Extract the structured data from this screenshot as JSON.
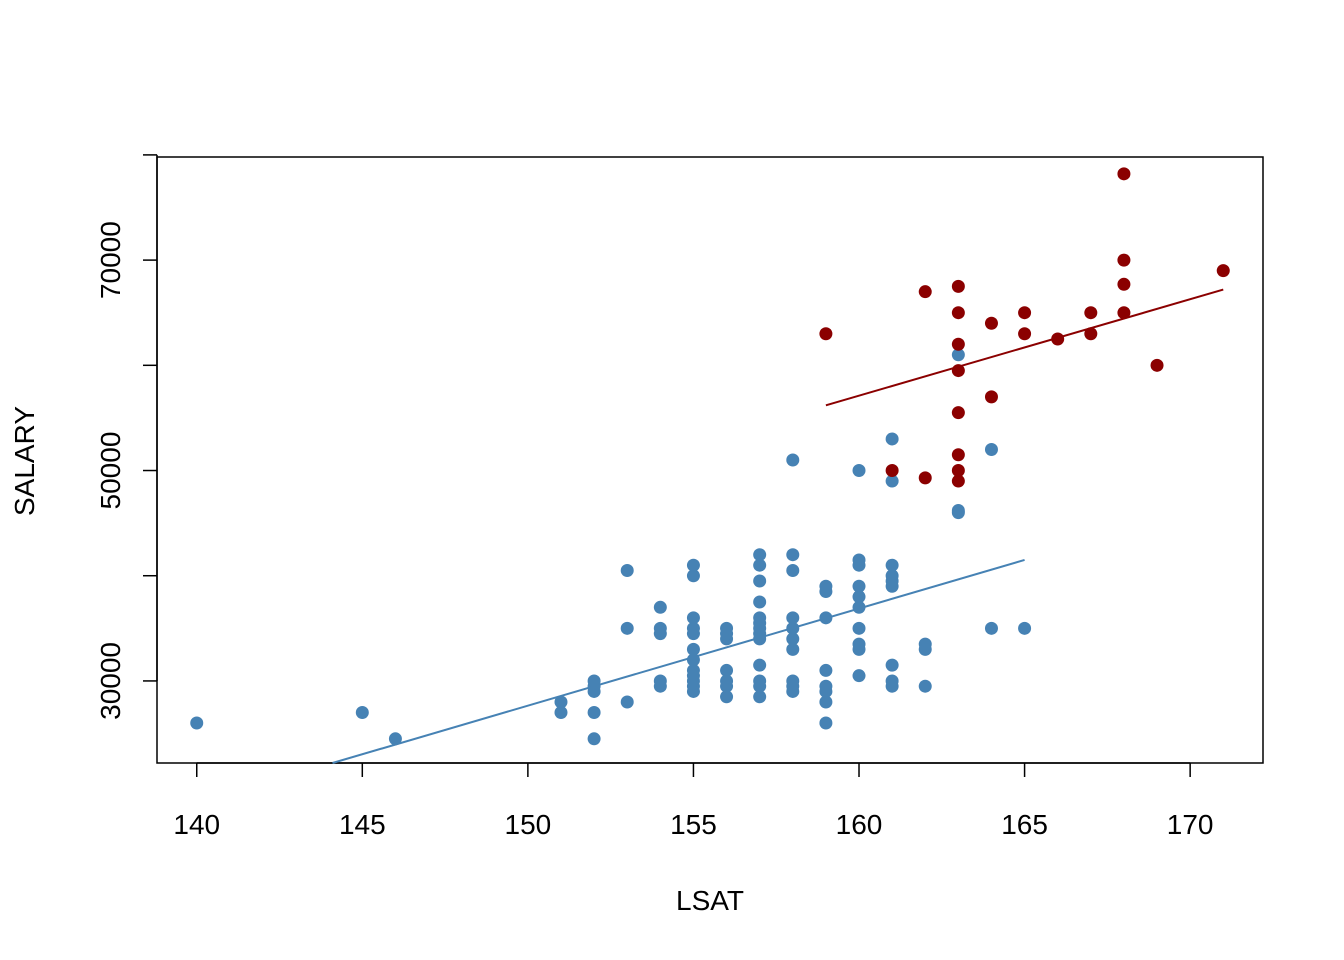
{
  "chart_data": {
    "type": "scatter",
    "title": "",
    "xlabel": "LSAT",
    "ylabel": "SALARY",
    "xlim": [
      138.8,
      172.2
    ],
    "ylim": [
      22200,
      79800
    ],
    "xticks": [
      140,
      145,
      150,
      155,
      160,
      165,
      170
    ],
    "yticks": [
      30000,
      50000,
      70000
    ],
    "ytick_labels_shown": [
      "30000",
      "50000",
      "70000"
    ],
    "ytick_marks": [
      30000,
      40000,
      50000,
      60000,
      70000,
      80000
    ],
    "grid": false,
    "legend": "none",
    "series": [
      {
        "color": "#4682B4",
        "points": [
          [
            140,
            26000
          ],
          [
            145,
            27000
          ],
          [
            146,
            24500
          ],
          [
            151,
            27000
          ],
          [
            151,
            28000
          ],
          [
            152,
            24500
          ],
          [
            152,
            27000
          ],
          [
            152,
            29000
          ],
          [
            152,
            29500
          ],
          [
            152,
            30000
          ],
          [
            153,
            28000
          ],
          [
            153,
            35000
          ],
          [
            153,
            40500
          ],
          [
            154,
            29500
          ],
          [
            154,
            30000
          ],
          [
            154,
            34500
          ],
          [
            154,
            35000
          ],
          [
            154,
            37000
          ],
          [
            155,
            29000
          ],
          [
            155,
            29500
          ],
          [
            155,
            30000
          ],
          [
            155,
            30500
          ],
          [
            155,
            31000
          ],
          [
            155,
            32000
          ],
          [
            155,
            33000
          ],
          [
            155,
            34500
          ],
          [
            155,
            35000
          ],
          [
            155,
            36000
          ],
          [
            155,
            40000
          ],
          [
            155,
            41000
          ],
          [
            156,
            28500
          ],
          [
            156,
            29500
          ],
          [
            156,
            30000
          ],
          [
            156,
            31000
          ],
          [
            156,
            34000
          ],
          [
            156,
            34500
          ],
          [
            156,
            35000
          ],
          [
            157,
            28500
          ],
          [
            157,
            29500
          ],
          [
            157,
            30000
          ],
          [
            157,
            31500
          ],
          [
            157,
            34000
          ],
          [
            157,
            34500
          ],
          [
            157,
            35000
          ],
          [
            157,
            35500
          ],
          [
            157,
            36000
          ],
          [
            157,
            37500
          ],
          [
            157,
            39500
          ],
          [
            157,
            41000
          ],
          [
            157,
            42000
          ],
          [
            158,
            29000
          ],
          [
            158,
            29500
          ],
          [
            158,
            30000
          ],
          [
            158,
            33000
          ],
          [
            158,
            34000
          ],
          [
            158,
            35000
          ],
          [
            158,
            36000
          ],
          [
            158,
            40500
          ],
          [
            158,
            42000
          ],
          [
            158,
            51000
          ],
          [
            159,
            26000
          ],
          [
            159,
            28000
          ],
          [
            159,
            29000
          ],
          [
            159,
            29500
          ],
          [
            159,
            31000
          ],
          [
            159,
            36000
          ],
          [
            159,
            38500
          ],
          [
            159,
            39000
          ],
          [
            160,
            30500
          ],
          [
            160,
            33000
          ],
          [
            160,
            33500
          ],
          [
            160,
            35000
          ],
          [
            160,
            37000
          ],
          [
            160,
            38000
          ],
          [
            160,
            39000
          ],
          [
            160,
            41000
          ],
          [
            160,
            41500
          ],
          [
            160,
            50000
          ],
          [
            161,
            29500
          ],
          [
            161,
            30000
          ],
          [
            161,
            31500
          ],
          [
            161,
            39000
          ],
          [
            161,
            39500
          ],
          [
            161,
            40000
          ],
          [
            161,
            41000
          ],
          [
            161,
            49000
          ],
          [
            161,
            53000
          ],
          [
            162,
            29500
          ],
          [
            162,
            33000
          ],
          [
            162,
            33500
          ],
          [
            163,
            46000
          ],
          [
            163,
            46200
          ],
          [
            163,
            61000
          ],
          [
            164,
            35000
          ],
          [
            164,
            52000
          ],
          [
            165,
            35000
          ]
        ],
        "fit_line": {
          "x": [
            144.1,
            165
          ],
          "y": [
            22200,
            41500
          ]
        }
      },
      {
        "color": "#8B0000",
        "points": [
          [
            159,
            63000
          ],
          [
            161,
            50000
          ],
          [
            162,
            49300
          ],
          [
            162,
            67000
          ],
          [
            163,
            49000
          ],
          [
            163,
            50000
          ],
          [
            163,
            51500
          ],
          [
            163,
            55500
          ],
          [
            163,
            59500
          ],
          [
            163,
            62000
          ],
          [
            163,
            65000
          ],
          [
            163,
            67500
          ],
          [
            164,
            57000
          ],
          [
            164,
            64000
          ],
          [
            165,
            63000
          ],
          [
            165,
            65000
          ],
          [
            166,
            62500
          ],
          [
            167,
            63000
          ],
          [
            167,
            65000
          ],
          [
            168,
            65000
          ],
          [
            168,
            67700
          ],
          [
            168,
            70000
          ],
          [
            168,
            78200
          ],
          [
            169,
            60000
          ],
          [
            171,
            69000
          ]
        ],
        "fit_line": {
          "x": [
            159,
            171
          ],
          "y": [
            56200,
            67200
          ]
        }
      }
    ]
  }
}
